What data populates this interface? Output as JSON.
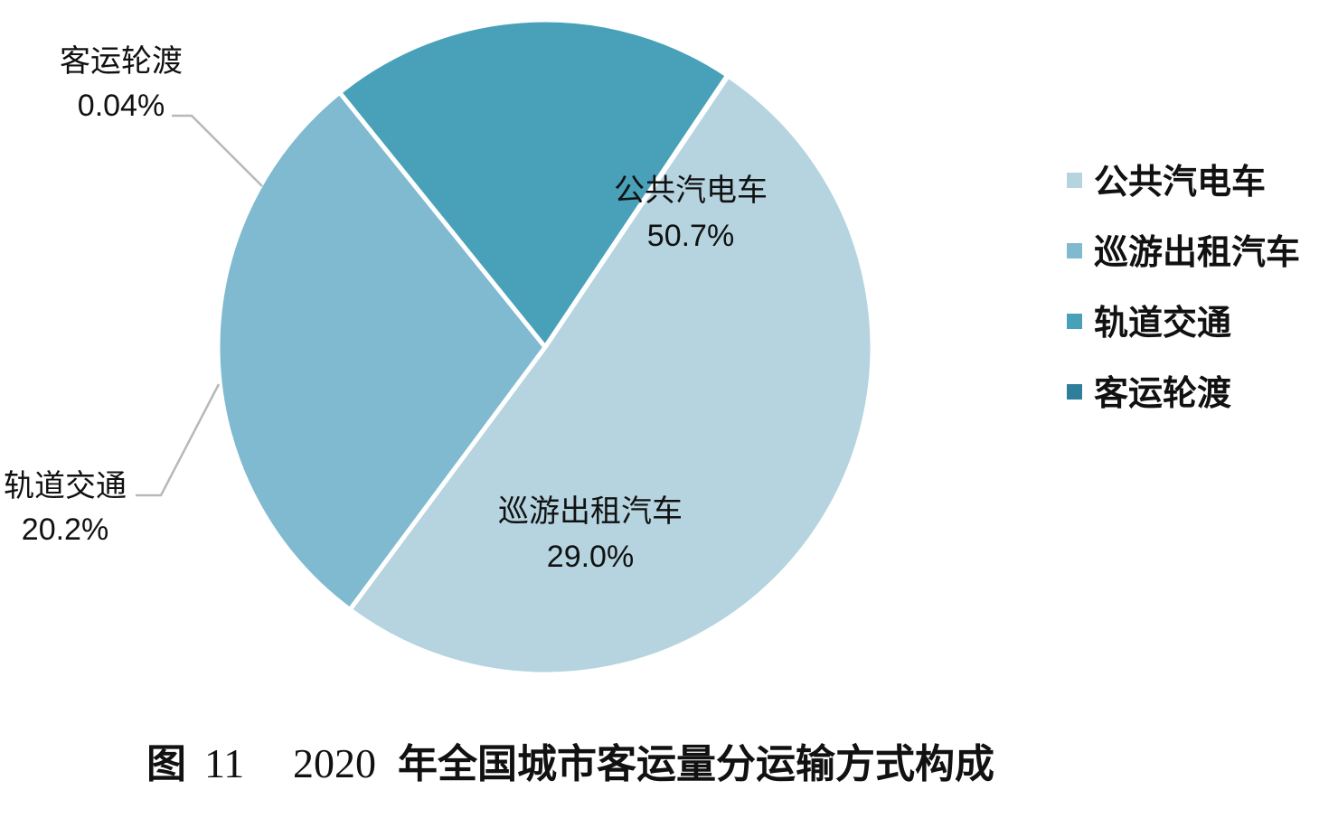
{
  "chart_data": {
    "type": "pie",
    "categories": [
      "公共汽电车",
      "巡游出租汽车",
      "轨道交通",
      "客运轮渡"
    ],
    "values": [
      50.7,
      29.0,
      20.2,
      0.04
    ],
    "value_labels": [
      "50.7%",
      "29.0%",
      "20.2%",
      "0.04%"
    ],
    "colors": [
      "#b5d4df",
      "#7fbad0",
      "#48a1b9",
      "#2f7f9a"
    ],
    "legend": {
      "position": "right",
      "entries": [
        "公共汽电车",
        "巡游出租汽车",
        "轨道交通",
        "客运轮渡"
      ]
    }
  },
  "caption": {
    "figure_label": "图",
    "figure_number": "11",
    "year": "2020",
    "text": "年全国城市客运量分运输方式构成"
  }
}
